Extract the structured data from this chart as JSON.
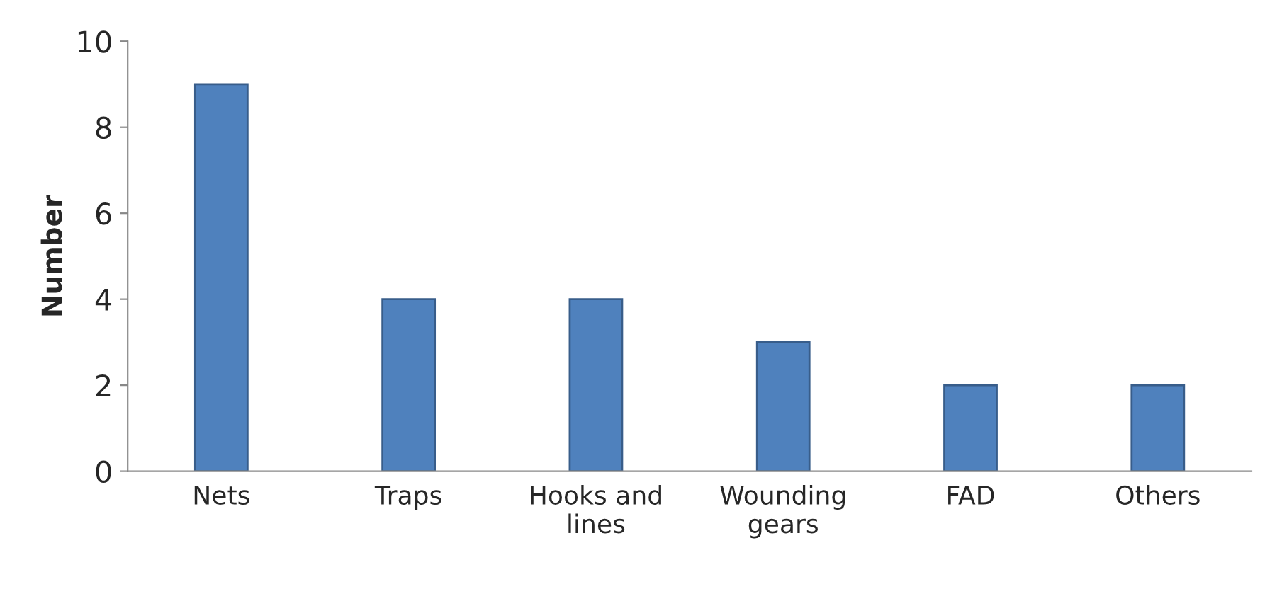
{
  "chart_data": {
    "type": "bar",
    "ylabel": "Number",
    "categories": [
      "Nets",
      "Traps",
      "Hooks and\nlines",
      "Wounding\ngears",
      "FAD",
      "Others"
    ],
    "values": [
      9,
      4,
      4,
      3,
      2,
      2
    ],
    "color": "#4f81bd",
    "ylim": [
      0,
      10
    ],
    "yticks": [
      0,
      2,
      4,
      6,
      8,
      10
    ],
    "grid": false,
    "legend": false
  }
}
